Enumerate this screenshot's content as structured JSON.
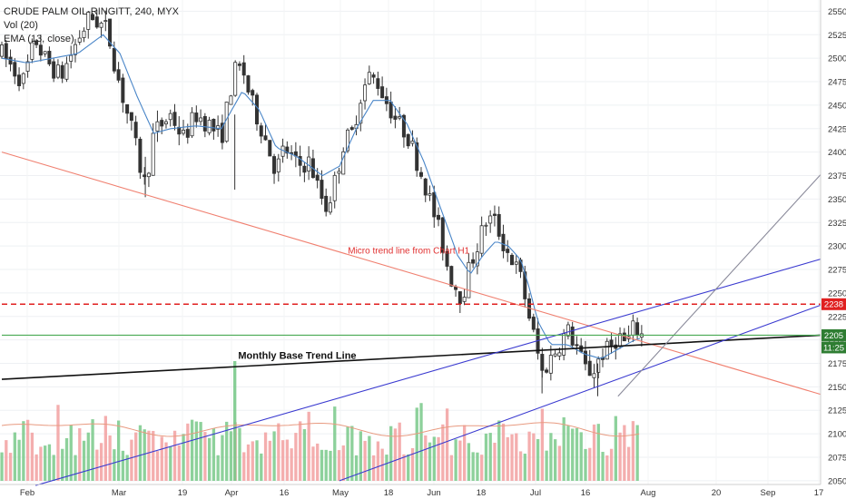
{
  "legend": {
    "symbol": "CRUDE PALM OIL-RINGITT, 240, MYX",
    "volume": "Vol (20)",
    "ema": "EMA (13, close)"
  },
  "chart_data": {
    "type": "candlestick",
    "title": "CRUDE PALM OIL-RINGITT, 240, MYX",
    "y_axis": {
      "position": "right",
      "ticks": [
        2050,
        2075,
        2100,
        2125,
        2150,
        2175,
        2200,
        2225,
        2250,
        2275,
        2300,
        2325,
        2350,
        2375,
        2400,
        2425,
        2450,
        2475,
        2500,
        2525,
        2550
      ],
      "range": [
        2046,
        2562
      ]
    },
    "x_axis": {
      "ticks": [
        "Feb",
        "Mar",
        "19",
        "Apr",
        "16",
        "May",
        "18",
        "Jun",
        "18",
        "Jul",
        "16",
        "Aug",
        "20",
        "Sep",
        "17"
      ]
    },
    "price_path": [
      {
        "x": 0.0,
        "y": 2505
      },
      {
        "x": 2.5,
        "y": 2475
      },
      {
        "x": 4.0,
        "y": 2520
      },
      {
        "x": 5.0,
        "y": 2500
      },
      {
        "x": 7.0,
        "y": 2480
      },
      {
        "x": 9.0,
        "y": 2520
      },
      {
        "x": 10.5,
        "y": 2545
      },
      {
        "x": 12.5,
        "y": 2530
      },
      {
        "x": 14.0,
        "y": 2470
      },
      {
        "x": 15.5,
        "y": 2420
      },
      {
        "x": 16.5,
        "y": 2380
      },
      {
        "x": 17.0,
        "y": 2365
      },
      {
        "x": 18.0,
        "y": 2420
      },
      {
        "x": 20.0,
        "y": 2440
      },
      {
        "x": 21.5,
        "y": 2415
      },
      {
        "x": 23.0,
        "y": 2440
      },
      {
        "x": 24.5,
        "y": 2430
      },
      {
        "x": 26.0,
        "y": 2415
      },
      {
        "x": 27.5,
        "y": 2485
      },
      {
        "x": 28.5,
        "y": 2490
      },
      {
        "x": 29.5,
        "y": 2455
      },
      {
        "x": 31.0,
        "y": 2420
      },
      {
        "x": 32.5,
        "y": 2380
      },
      {
        "x": 33.5,
        "y": 2405
      },
      {
        "x": 35.0,
        "y": 2385
      },
      {
        "x": 36.5,
        "y": 2390
      },
      {
        "x": 37.5,
        "y": 2360
      },
      {
        "x": 38.5,
        "y": 2340
      },
      {
        "x": 39.5,
        "y": 2370
      },
      {
        "x": 40.5,
        "y": 2410
      },
      {
        "x": 41.5,
        "y": 2420
      },
      {
        "x": 42.5,
        "y": 2460
      },
      {
        "x": 43.5,
        "y": 2480
      },
      {
        "x": 44.5,
        "y": 2475
      },
      {
        "x": 45.5,
        "y": 2455
      },
      {
        "x": 47.0,
        "y": 2430
      },
      {
        "x": 48.0,
        "y": 2420
      },
      {
        "x": 49.0,
        "y": 2395
      },
      {
        "x": 50.0,
        "y": 2370
      },
      {
        "x": 51.0,
        "y": 2340
      },
      {
        "x": 52.0,
        "y": 2310
      },
      {
        "x": 53.0,
        "y": 2270
      },
      {
        "x": 54.5,
        "y": 2245
      },
      {
        "x": 55.5,
        "y": 2280
      },
      {
        "x": 56.5,
        "y": 2305
      },
      {
        "x": 57.5,
        "y": 2330
      },
      {
        "x": 58.5,
        "y": 2325
      },
      {
        "x": 59.5,
        "y": 2300
      },
      {
        "x": 60.5,
        "y": 2285
      },
      {
        "x": 61.5,
        "y": 2265
      },
      {
        "x": 62.5,
        "y": 2225
      },
      {
        "x": 63.5,
        "y": 2185
      },
      {
        "x": 64.0,
        "y": 2165
      },
      {
        "x": 65.0,
        "y": 2180
      },
      {
        "x": 66.0,
        "y": 2195
      },
      {
        "x": 67.0,
        "y": 2210
      },
      {
        "x": 68.0,
        "y": 2195
      },
      {
        "x": 69.0,
        "y": 2170
      },
      {
        "x": 70.0,
        "y": 2165
      },
      {
        "x": 71.0,
        "y": 2185
      },
      {
        "x": 72.0,
        "y": 2190
      },
      {
        "x": 73.0,
        "y": 2205
      },
      {
        "x": 74.0,
        "y": 2195
      },
      {
        "x": 75.0,
        "y": 2215
      },
      {
        "x": 75.8,
        "y": 2205
      }
    ],
    "ema_13_path": [
      {
        "x": 0.0,
        "y": 2500
      },
      {
        "x": 3.0,
        "y": 2495
      },
      {
        "x": 6.0,
        "y": 2500
      },
      {
        "x": 9.0,
        "y": 2505
      },
      {
        "x": 12.0,
        "y": 2525
      },
      {
        "x": 14.0,
        "y": 2505
      },
      {
        "x": 16.0,
        "y": 2460
      },
      {
        "x": 18.0,
        "y": 2420
      },
      {
        "x": 20.0,
        "y": 2425
      },
      {
        "x": 23.0,
        "y": 2428
      },
      {
        "x": 26.0,
        "y": 2425
      },
      {
        "x": 28.5,
        "y": 2465
      },
      {
        "x": 30.5,
        "y": 2445
      },
      {
        "x": 32.5,
        "y": 2405
      },
      {
        "x": 35.0,
        "y": 2395
      },
      {
        "x": 38.0,
        "y": 2375
      },
      {
        "x": 40.0,
        "y": 2385
      },
      {
        "x": 42.0,
        "y": 2425
      },
      {
        "x": 44.0,
        "y": 2455
      },
      {
        "x": 46.0,
        "y": 2455
      },
      {
        "x": 48.0,
        "y": 2430
      },
      {
        "x": 50.0,
        "y": 2390
      },
      {
        "x": 52.0,
        "y": 2340
      },
      {
        "x": 54.0,
        "y": 2290
      },
      {
        "x": 55.5,
        "y": 2270
      },
      {
        "x": 57.0,
        "y": 2290
      },
      {
        "x": 58.5,
        "y": 2305
      },
      {
        "x": 60.0,
        "y": 2300
      },
      {
        "x": 61.5,
        "y": 2285
      },
      {
        "x": 62.5,
        "y": 2255
      },
      {
        "x": 63.5,
        "y": 2220
      },
      {
        "x": 65.0,
        "y": 2195
      },
      {
        "x": 67.0,
        "y": 2195
      },
      {
        "x": 69.0,
        "y": 2185
      },
      {
        "x": 71.0,
        "y": 2180
      },
      {
        "x": 73.0,
        "y": 2190
      },
      {
        "x": 75.0,
        "y": 2200
      },
      {
        "x": 75.8,
        "y": 2202
      }
    ],
    "x_span": 97,
    "lines": [
      {
        "name": "micro-trend-line",
        "color": "#f08070",
        "from": [
          0,
          2400
        ],
        "to": [
          97,
          2142
        ]
      },
      {
        "name": "monthly-base-trend-line",
        "color": "#111111",
        "from": [
          0,
          2158
        ],
        "to": [
          97,
          2205
        ]
      },
      {
        "name": "upper-channel-line",
        "color": "#3a3ad0",
        "from": [
          4,
          2045
        ],
        "to": [
          97,
          2286
        ]
      },
      {
        "name": "lower-channel-line",
        "color": "#3a3ad0",
        "from": [
          40,
          2050
        ],
        "to": [
          97,
          2237
        ]
      },
      {
        "name": "steep-grey-line",
        "color": "#8a8a9a",
        "from": [
          73,
          2140
        ],
        "to": [
          97,
          2376
        ]
      },
      {
        "name": "resistance-dashed",
        "color": "#e02020",
        "from": [
          0,
          2238
        ],
        "to": [
          97,
          2238
        ],
        "dashed": true
      },
      {
        "name": "last-price-line",
        "color": "#4aaa55",
        "from": [
          0,
          2205
        ],
        "to": [
          97,
          2205
        ]
      }
    ],
    "annotations": [
      {
        "name": "micro-trend-note",
        "text": "Micro trend line from Chart H1",
        "x": 41,
        "y": 2292
      },
      {
        "name": "monthly-base-note",
        "text": "Monthly Base Trend Line",
        "x": 28,
        "y": 2180
      }
    ],
    "price_labels": {
      "resistance": {
        "text": "2238",
        "value": 2238,
        "color": "#e02020"
      },
      "last": {
        "text": "2205",
        "value": 2205,
        "color": "#2e7d32"
      },
      "time": {
        "text": "11:25",
        "color": "#2e7d32"
      }
    },
    "volume": {
      "count": 148,
      "up_color": "#79c98a",
      "down_color": "#f2a0a0",
      "spike_value": 3.4
    },
    "colors": {
      "candle": "#333333",
      "ema": "#4a86c8"
    }
  }
}
